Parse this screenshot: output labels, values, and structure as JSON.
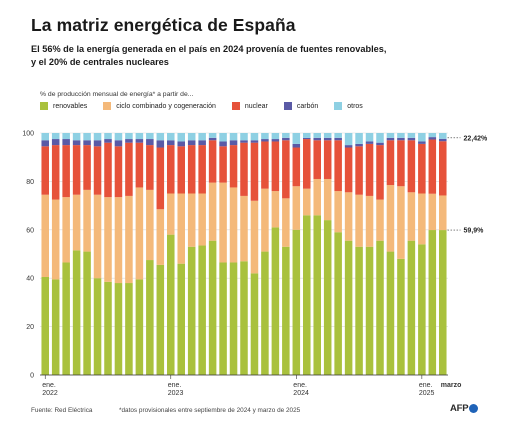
{
  "title": "La matriz energética de España",
  "subtitle": "El 56% de la energía generada en el país en 2024 provenía de fuentes renovables, y el 20% de centrales nucleares",
  "legend_caption": "% de producción mensual de energía* a partir de...",
  "source": "Fuente: Red Eléctrica",
  "footnote": "*datos provisionales entre septiembre de 2024 y marzo de 2025",
  "logo": "AFP",
  "colors": {
    "renovables": "#a9c13d",
    "ciclo": "#f4b97a",
    "nuclear": "#e6523a",
    "carbon": "#5a5aa6",
    "otros": "#8ed0e3",
    "logo_dot": "#1f63b8"
  },
  "chart_data": {
    "type": "bar",
    "stacked": true,
    "ylim": [
      0,
      100
    ],
    "yticks": [
      0,
      20,
      40,
      60,
      80,
      100
    ],
    "grid": true,
    "legend_placement": "top-left",
    "categories": [
      "2022-01",
      "2022-02",
      "2022-03",
      "2022-04",
      "2022-05",
      "2022-06",
      "2022-07",
      "2022-08",
      "2022-09",
      "2022-10",
      "2022-11",
      "2022-12",
      "2023-01",
      "2023-02",
      "2023-03",
      "2023-04",
      "2023-05",
      "2023-06",
      "2023-07",
      "2023-08",
      "2023-09",
      "2023-10",
      "2023-11",
      "2023-12",
      "2024-01",
      "2024-02",
      "2024-03",
      "2024-04",
      "2024-05",
      "2024-06",
      "2024-07",
      "2024-08",
      "2024-09",
      "2024-10",
      "2024-11",
      "2024-12",
      "2025-01",
      "2025-02",
      "2025-03"
    ],
    "x_labels": [
      {
        "index": 0,
        "line1": "ene.",
        "line2": "2022"
      },
      {
        "index": 12,
        "line1": "ene.",
        "line2": "2023"
      },
      {
        "index": 24,
        "line1": "ene.",
        "line2": "2024"
      },
      {
        "index": 36,
        "line1": "ene.",
        "line2": "2025"
      },
      {
        "index": 38,
        "line1": "marzo",
        "line2": ""
      }
    ],
    "series": [
      {
        "name": "renovables",
        "values": [
          40.5,
          39.5,
          46.5,
          51.5,
          51,
          40,
          38.5,
          38,
          38,
          39.5,
          47.5,
          45.5,
          58,
          46,
          53,
          53.5,
          55.5,
          46.5,
          46.5,
          47,
          42,
          51,
          61,
          53,
          60,
          66,
          66,
          64,
          59,
          55.5,
          53,
          53,
          55.5,
          51,
          48,
          55.5,
          54,
          59.9,
          59.9
        ]
      },
      {
        "name": "ciclo combinado y cogeneración",
        "values": [
          34,
          33,
          27,
          23,
          25.5,
          34.5,
          35,
          35.5,
          36,
          38,
          29,
          23,
          17,
          29,
          22,
          21.5,
          24,
          33,
          31,
          27,
          30,
          26,
          15,
          20,
          18,
          11,
          15,
          17,
          17,
          20,
          21.5,
          21,
          17,
          27.5,
          30,
          20,
          21,
          15,
          14.3
        ]
      },
      {
        "name": "nuclear",
        "values": [
          20,
          22.5,
          21.5,
          20.5,
          18.5,
          20,
          22.5,
          21,
          22,
          18.5,
          18.5,
          25.5,
          20,
          19.5,
          20,
          20,
          17.5,
          15,
          17.5,
          22,
          24,
          19.5,
          20.5,
          24,
          16,
          20.5,
          16,
          16,
          21,
          18.5,
          20,
          21.5,
          22.5,
          18.5,
          19,
          21.5,
          20.5,
          22.4,
          22.42
        ]
      },
      {
        "name": "carbón",
        "values": [
          2.5,
          2.5,
          2.5,
          2,
          2,
          2.5,
          1.5,
          2.5,
          1.5,
          1.5,
          2.5,
          3,
          2,
          2,
          2,
          2,
          1,
          2,
          2,
          1,
          1,
          1,
          1,
          1,
          1.5,
          0.5,
          1,
          1,
          1,
          1,
          1,
          1,
          1,
          1,
          1,
          1,
          1,
          1,
          1
        ]
      },
      {
        "name": "otros",
        "values": [
          3,
          2.5,
          2.5,
          3,
          3,
          3,
          2.5,
          3,
          2.5,
          2.5,
          2.5,
          3,
          3,
          3.5,
          3,
          3,
          2,
          3.5,
          3,
          3,
          3,
          2.5,
          2.5,
          2,
          4.5,
          2,
          2,
          2,
          2,
          5,
          4.5,
          3.5,
          4,
          2,
          2,
          2,
          3.5,
          1.7,
          2.4
        ]
      }
    ],
    "annotations": [
      {
        "series": "nuclear",
        "text": "22,42%"
      },
      {
        "series": "renovables",
        "text": "59,9%"
      }
    ]
  }
}
